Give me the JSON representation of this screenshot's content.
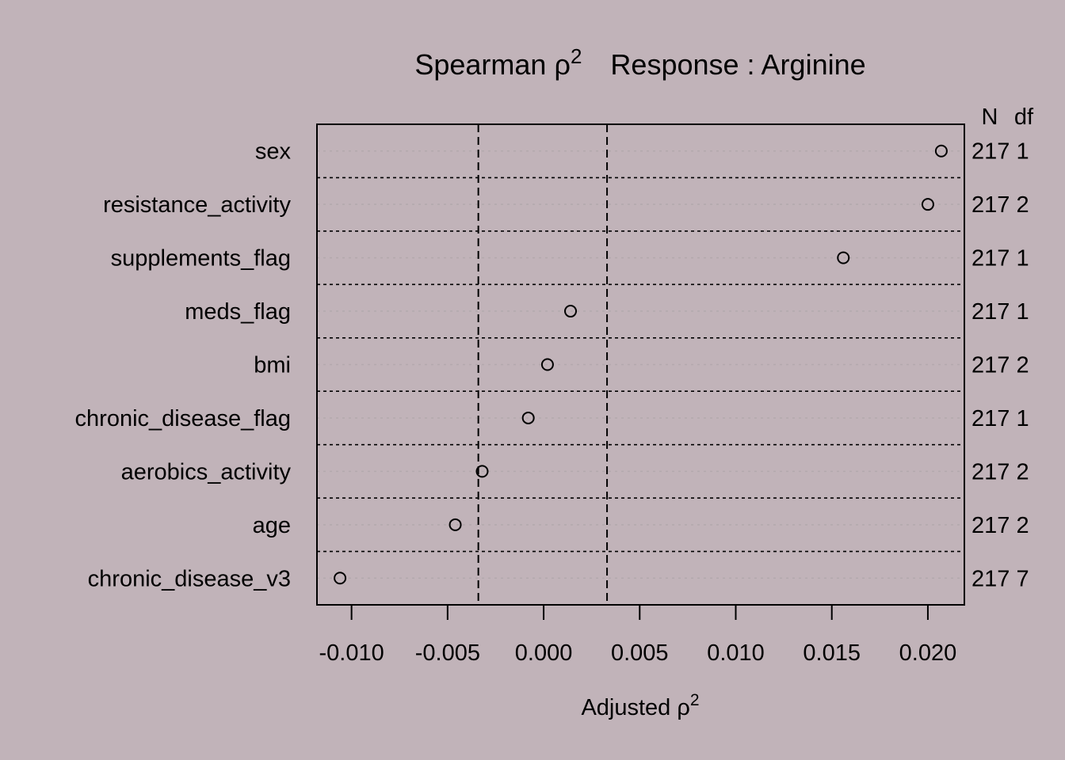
{
  "colors": {
    "background": "#c1b3b9",
    "ink": "#000000",
    "gridline": "#b3a9ad"
  },
  "chart_data": {
    "type": "scatter",
    "title": {
      "prefix": "Spearman ",
      "rho": "ρ",
      "sup": "2",
      "response": "Response : Arginine"
    },
    "xlabel": {
      "text": "Adjusted ",
      "rho": "ρ",
      "sup": "2"
    },
    "right_headers": {
      "n": "N",
      "df": "df"
    },
    "xlim": [
      -0.0118,
      0.0219
    ],
    "xticks": [
      -0.01,
      -0.005,
      0.0,
      0.005,
      0.01,
      0.015,
      0.02
    ],
    "xtick_labels": [
      "-0.010",
      "-0.005",
      "0.000",
      "0.005",
      "0.010",
      "0.015",
      "0.020"
    ],
    "reference_lines": [
      -0.0034,
      0.0033
    ],
    "rows": [
      {
        "label": "sex",
        "value": 0.0207,
        "n": "217",
        "df": "1"
      },
      {
        "label": "resistance_activity",
        "value": 0.02,
        "n": "217",
        "df": "2"
      },
      {
        "label": "supplements_flag",
        "value": 0.0156,
        "n": "217",
        "df": "1"
      },
      {
        "label": "meds_flag",
        "value": 0.0014,
        "n": "217",
        "df": "1"
      },
      {
        "label": "bmi",
        "value": 0.0002,
        "n": "217",
        "df": "2"
      },
      {
        "label": "chronic_disease_flag",
        "value": -0.0008,
        "n": "217",
        "df": "1"
      },
      {
        "label": "aerobics_activity",
        "value": -0.0032,
        "n": "217",
        "df": "2"
      },
      {
        "label": "age",
        "value": -0.0046,
        "n": "217",
        "df": "2"
      },
      {
        "label": "chronic_disease_v3",
        "value": -0.0106,
        "n": "217",
        "df": "7"
      }
    ]
  }
}
